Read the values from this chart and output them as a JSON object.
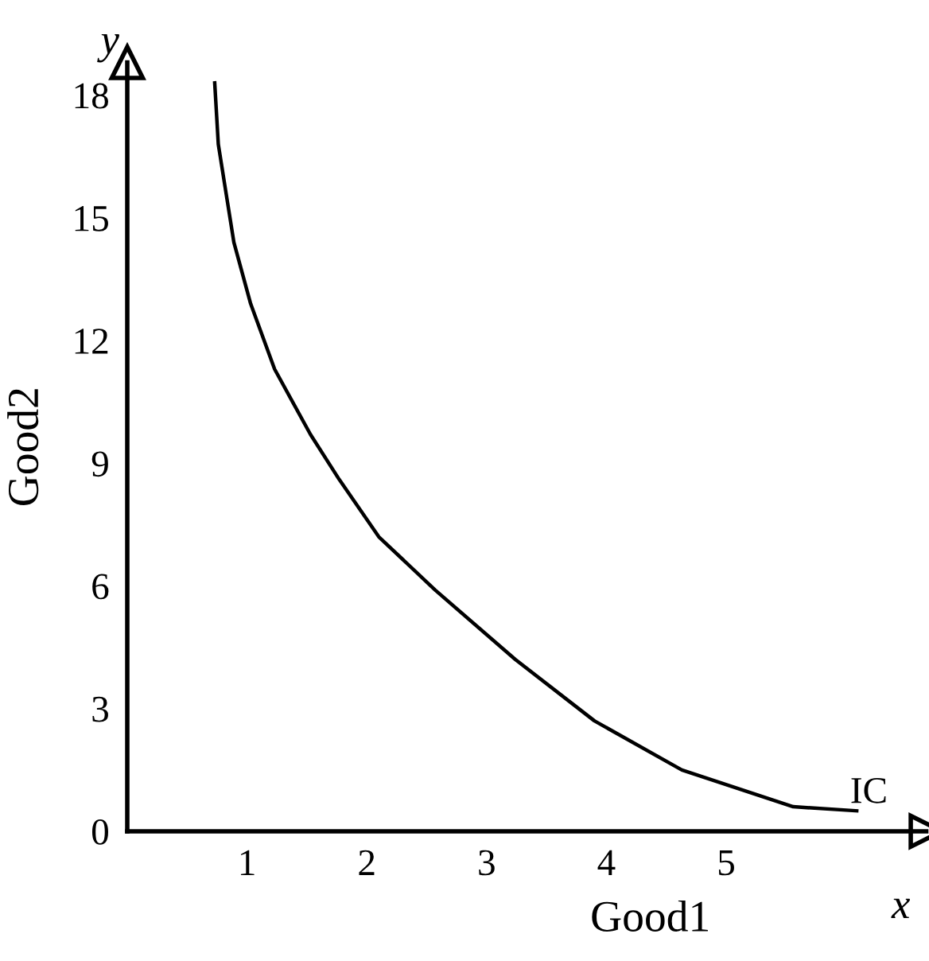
{
  "chart_data": {
    "type": "line",
    "xlabel": "Good1",
    "ylabel": "Good2",
    "annotations": [
      "x",
      "y"
    ],
    "xlim": [
      0,
      6.67
    ],
    "ylim": [
      0,
      18.8
    ],
    "xticks": [
      1,
      2,
      3,
      4,
      5
    ],
    "yticks": [
      0,
      3,
      6,
      9,
      12,
      15,
      18
    ],
    "grid": false,
    "legend": false,
    "marker": "none",
    "line_style": "solid",
    "series": [
      {
        "name": "IC",
        "color": "#000000",
        "x": [
          0.73,
          0.76,
          0.89,
          1.03,
          1.23,
          1.53,
          1.77,
          2.1,
          2.57,
          3.24,
          3.9,
          4.63,
          5.56,
          6.09
        ],
        "values": [
          18.3,
          16.8,
          14.4,
          12.9,
          11.3,
          9.7,
          8.6,
          7.2,
          5.9,
          4.2,
          2.7,
          1.5,
          0.6,
          0.5
        ]
      }
    ]
  }
}
